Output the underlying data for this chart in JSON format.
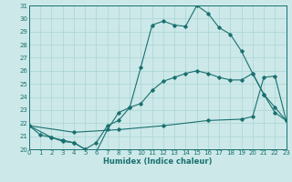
{
  "xlabel": "Humidex (Indice chaleur)",
  "bg_color": "#cce8e8",
  "grid_color": "#aad4d4",
  "line_color": "#1a7070",
  "xlim": [
    0,
    23
  ],
  "ylim": [
    20,
    31
  ],
  "xticks": [
    0,
    1,
    2,
    3,
    4,
    5,
    6,
    7,
    8,
    9,
    10,
    11,
    12,
    13,
    14,
    15,
    16,
    17,
    18,
    19,
    20,
    21,
    22,
    23
  ],
  "yticks": [
    20,
    21,
    22,
    23,
    24,
    25,
    26,
    27,
    28,
    29,
    30,
    31
  ],
  "series1": [
    [
      0,
      21.8
    ],
    [
      1,
      21.1
    ],
    [
      2,
      20.9
    ],
    [
      3,
      20.7
    ],
    [
      4,
      20.5
    ],
    [
      5,
      20.0
    ],
    [
      6,
      19.8
    ],
    [
      7,
      21.5
    ],
    [
      8,
      22.8
    ],
    [
      9,
      23.2
    ],
    [
      10,
      26.3
    ],
    [
      11,
      29.5
    ],
    [
      12,
      29.8
    ],
    [
      13,
      29.5
    ],
    [
      14,
      29.4
    ],
    [
      15,
      31.0
    ],
    [
      16,
      30.4
    ],
    [
      17,
      29.3
    ],
    [
      18,
      28.8
    ],
    [
      19,
      27.5
    ],
    [
      20,
      25.8
    ],
    [
      21,
      24.2
    ],
    [
      22,
      22.8
    ],
    [
      23,
      22.2
    ]
  ],
  "series2": [
    [
      0,
      21.8
    ],
    [
      2,
      20.9
    ],
    [
      3,
      20.6
    ],
    [
      4,
      20.5
    ],
    [
      5,
      20.0
    ],
    [
      6,
      20.5
    ],
    [
      7,
      21.8
    ],
    [
      8,
      22.2
    ],
    [
      9,
      23.2
    ],
    [
      10,
      23.5
    ],
    [
      11,
      24.5
    ],
    [
      12,
      25.2
    ],
    [
      13,
      25.5
    ],
    [
      14,
      25.8
    ],
    [
      15,
      26.0
    ],
    [
      16,
      25.8
    ],
    [
      17,
      25.5
    ],
    [
      18,
      25.3
    ],
    [
      19,
      25.3
    ],
    [
      20,
      25.8
    ],
    [
      21,
      24.2
    ],
    [
      22,
      23.2
    ],
    [
      23,
      22.2
    ]
  ],
  "series3": [
    [
      0,
      21.8
    ],
    [
      4,
      21.3
    ],
    [
      8,
      21.5
    ],
    [
      12,
      21.8
    ],
    [
      16,
      22.2
    ],
    [
      19,
      22.3
    ],
    [
      20,
      22.5
    ],
    [
      21,
      25.5
    ],
    [
      22,
      25.6
    ],
    [
      23,
      22.2
    ]
  ]
}
